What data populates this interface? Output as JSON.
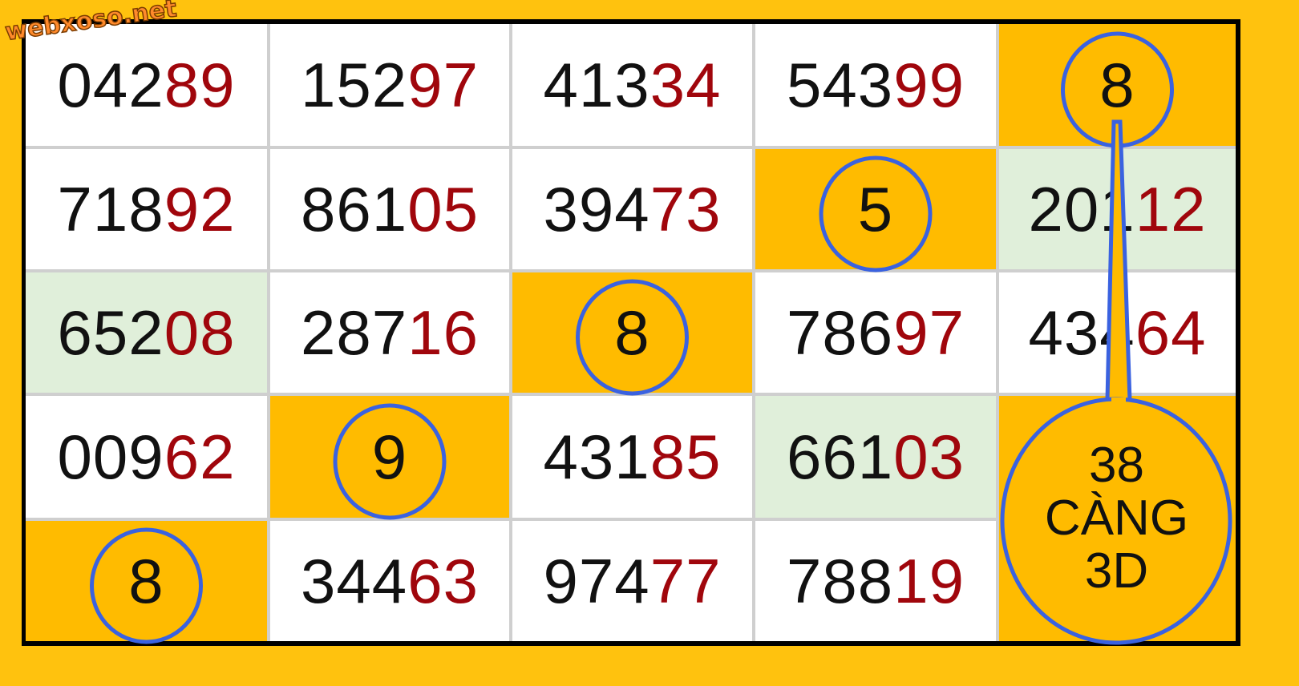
{
  "watermark": "webxoso.net",
  "colors": {
    "background": "#FFC20E",
    "highlight": "#FFBB00",
    "green": "#E0EFDA",
    "red_digits": "#A0060C",
    "circle": "#3A62E0"
  },
  "grid": [
    [
      {
        "black": "042",
        "red": "89"
      },
      {
        "black": "152",
        "red": "97"
      },
      {
        "black": "413",
        "red": "34"
      },
      {
        "black": "543",
        "red": "99"
      },
      {
        "highlight": "8",
        "circled": true
      }
    ],
    [
      {
        "black": "718",
        "red": "92"
      },
      {
        "black": "861",
        "red": "05"
      },
      {
        "black": "394",
        "red": "73"
      },
      {
        "highlight": "5",
        "circled": true
      },
      {
        "black": "201",
        "red": "12",
        "bg": "green"
      }
    ],
    [
      {
        "black": "652",
        "red": "08",
        "bg": "green"
      },
      {
        "black": "287",
        "red": "16"
      },
      {
        "highlight": "8",
        "circled": true
      },
      {
        "black": "786",
        "red": "97"
      },
      {
        "black": "434",
        "red": "64"
      }
    ],
    [
      {
        "black": "009",
        "red": "62"
      },
      {
        "highlight": "9",
        "circled": true
      },
      {
        "black": "431",
        "red": "85"
      },
      {
        "black": "661",
        "red": "03",
        "bg": "green"
      },
      {
        "highlight": "",
        "merged": true
      }
    ],
    [
      {
        "highlight": "8",
        "circled": true
      },
      {
        "black": "344",
        "red": "63"
      },
      {
        "black": "974",
        "red": "77"
      },
      {
        "black": "788",
        "red": "19"
      },
      {
        "highlight": "",
        "merged": true
      }
    ]
  ],
  "callout": {
    "line1": "38",
    "line2": "CÀNG",
    "line3": "3D"
  }
}
